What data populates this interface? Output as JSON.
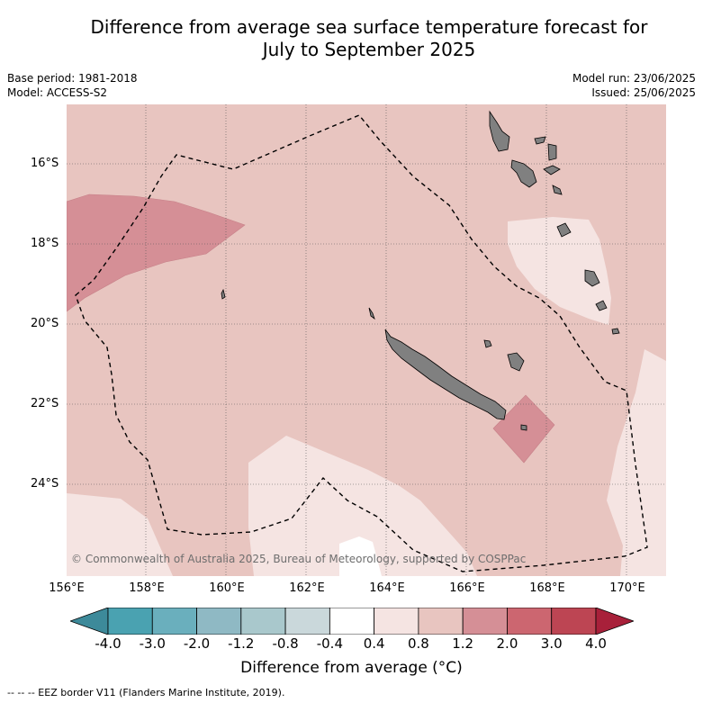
{
  "title_line1": "Difference from average sea surface temperature forecast for",
  "title_line2": "July to September 2025",
  "meta_left": {
    "base_period": "Base period: 1981-2018",
    "model": "Model: ACCESS-S2"
  },
  "meta_right": {
    "model_run": "Model run: 23/06/2025",
    "issued": "Issued: 25/06/2025"
  },
  "y_ticks": [
    "16°S",
    "18°S",
    "20°S",
    "22°S",
    "24°S"
  ],
  "x_ticks": [
    "156°E",
    "158°E",
    "160°E",
    "162°E",
    "164°E",
    "166°E",
    "168°E",
    "170°E"
  ],
  "copyright": "© Commonwealth of Australia 2025, Bureau of Meteorology, supported by COSPPac",
  "colorbar": {
    "ticks": [
      "-4.0",
      "-3.0",
      "-2.0",
      "-1.2",
      "-0.8",
      "-0.4",
      "0.4",
      "0.8",
      "1.2",
      "2.0",
      "3.0",
      "4.0"
    ],
    "colors": [
      "#3d8a9a",
      "#4aa2b1",
      "#6aafbd",
      "#8fb9c4",
      "#a9c8cc",
      "#cad8db",
      "#ffffff",
      "#f5e4e2",
      "#e8c5c0",
      "#d58f96",
      "#cc6670",
      "#bd4553",
      "#a8203a"
    ],
    "label": "Difference from average ($^\\circ$C)"
  },
  "footnote": "-- -- -- EEZ border V11 (Flanders Marine Institute, 2019).",
  "map_colors": {
    "band_0_4_0_8": "#f5e4e2",
    "band_0_8_1_2": "#e8c5c0",
    "band_1_2_2_0": "#d58f96",
    "land": "#808080"
  }
}
